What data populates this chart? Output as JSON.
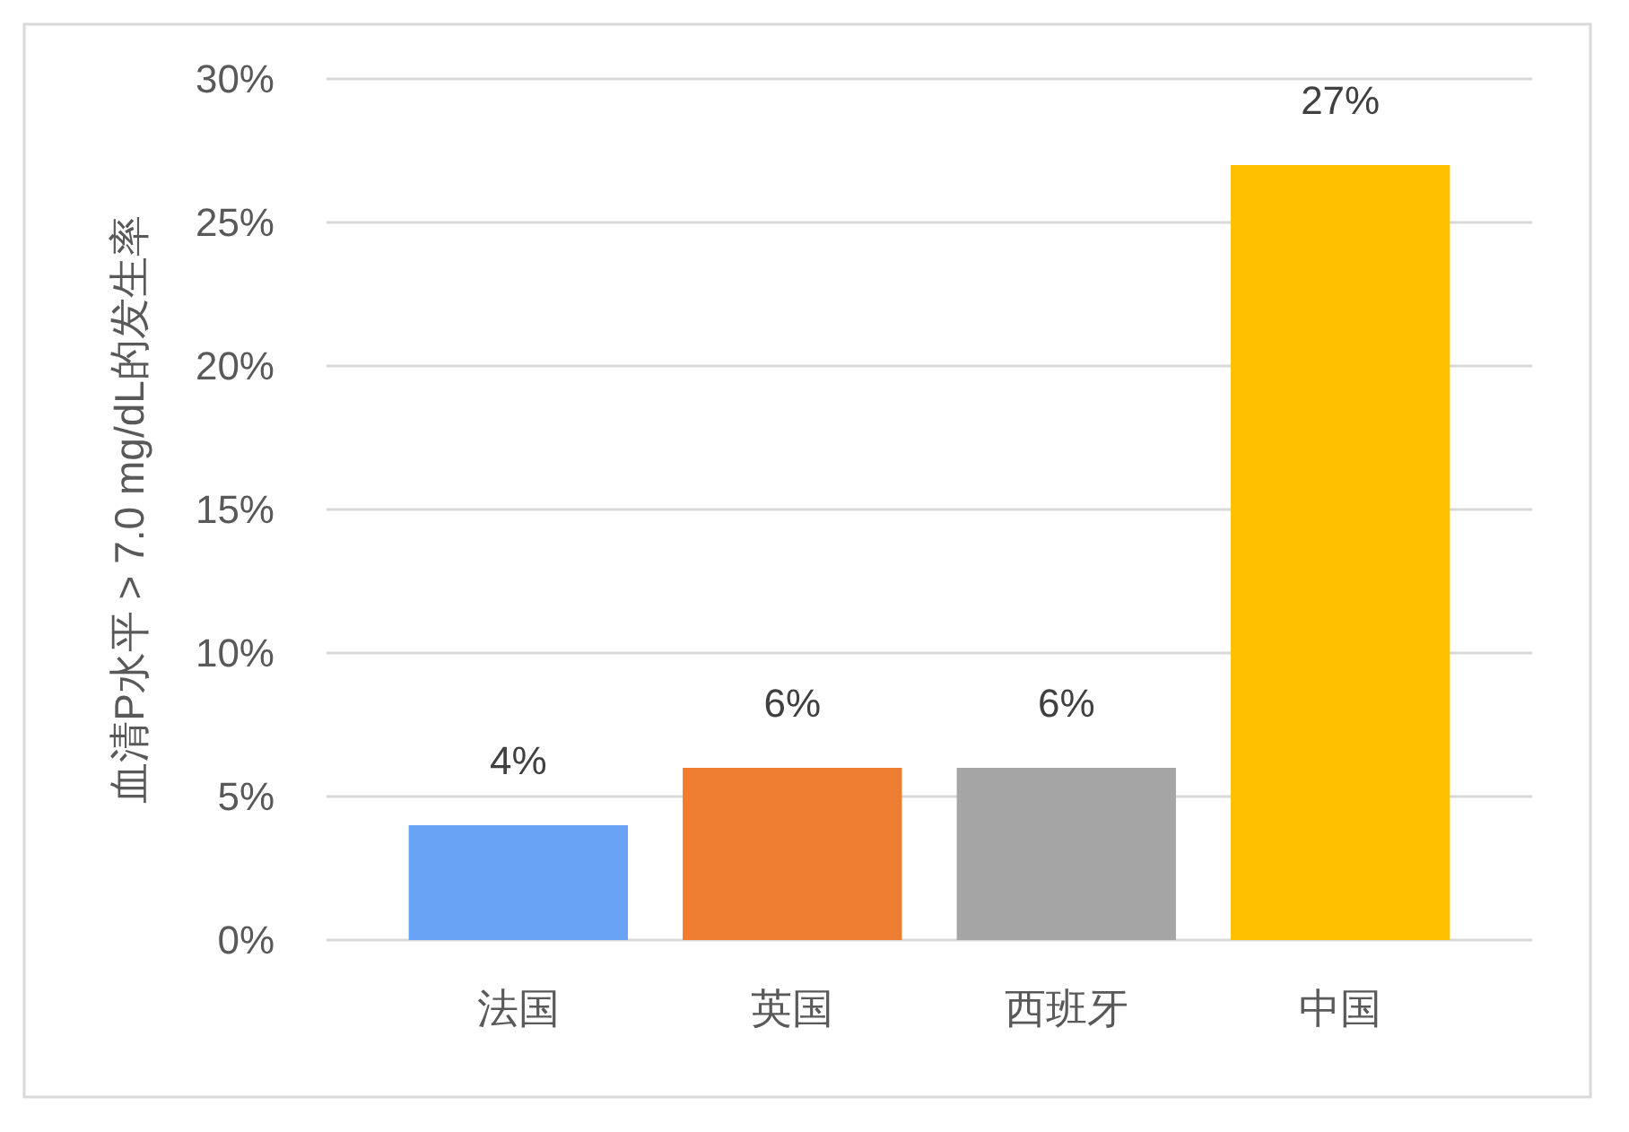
{
  "chart_data": {
    "type": "bar",
    "ylabel": "血清P水平 > 7.0 mg/dL的发生率",
    "categories": [
      "法国",
      "英国",
      "西班牙",
      "中国"
    ],
    "values": [
      4,
      6,
      6,
      27
    ],
    "colors": [
      "#68a3f6",
      "#ed7d31",
      "#a5a5a5",
      "#ffc000"
    ],
    "value_labels": [
      "4%",
      "6%",
      "6%",
      "27%"
    ],
    "ylim": [
      0,
      30
    ],
    "yticks": [
      {
        "value": 0,
        "label": "0%"
      },
      {
        "value": 5,
        "label": "5%"
      },
      {
        "value": 10,
        "label": "10%"
      },
      {
        "value": 15,
        "label": "15%"
      },
      {
        "value": 20,
        "label": "20%"
      },
      {
        "value": 25,
        "label": "25%"
      },
      {
        "value": 30,
        "label": "30%"
      }
    ],
    "grid": "y"
  }
}
